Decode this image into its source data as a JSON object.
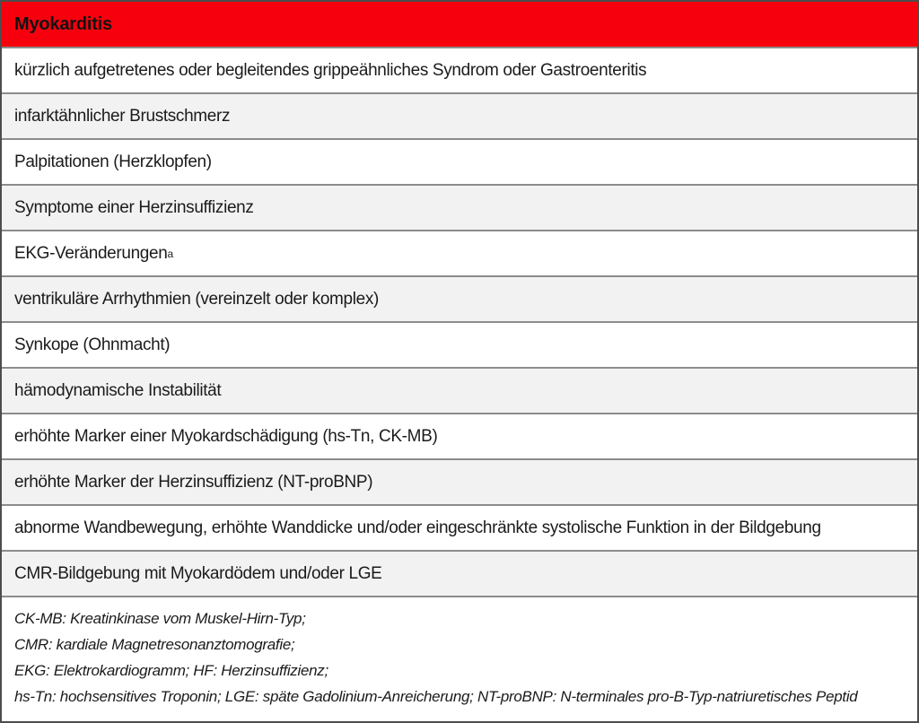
{
  "colors": {
    "header_bg": "#f7000d",
    "header_text": "#121212",
    "row_bg": "#ffffff",
    "row_alt_bg": "#f2f2f2",
    "grid_line": "#8c8c8c",
    "outer_border": "#4d4d4d",
    "body_text": "#1b1b1b"
  },
  "table": {
    "header_title": "Myokarditis",
    "rows": [
      {
        "text": "kürzlich aufgetretenes oder begleitendes grippeähnliches Syndrom oder Gastroenteritis"
      },
      {
        "text": "infarktähnlicher Brustschmerz"
      },
      {
        "text": "Palpitationen (Herzklopfen)"
      },
      {
        "text": "Symptome einer Herzinsuffizienz"
      },
      {
        "text": "EKG-Veränderungen",
        "sup": "a"
      },
      {
        "text": "ventrikuläre Arrhythmien (vereinzelt oder komplex)"
      },
      {
        "text": "Synkope (Ohnmacht)"
      },
      {
        "text": "hämodynamische Instabilität"
      },
      {
        "text": "erhöhte Marker einer Myokardschädigung (hs-Tn, CK-MB)"
      },
      {
        "text": "erhöhte Marker der Herzinsuffizienz (NT-proBNP)"
      },
      {
        "text": "abnorme Wandbewegung, erhöhte Wanddicke und/oder eingeschränkte systolische Funktion in der Bildgebung"
      },
      {
        "text": "CMR-Bildgebung mit Myokardödem und/oder LGE"
      }
    ],
    "footnotes": [
      "CK-MB: Kreatinkinase vom Muskel-Hirn-Typ;",
      "CMR: kardiale Magnetresonanztomografie;",
      "EKG: Elektrokardiogramm; HF: Herzinsuffizienz;",
      "hs-Tn: hochsensitives Troponin; LGE: späte Gadolinium-Anreicherung; NT-proBNP: N-terminales pro-B-Typ-natriuretisches Peptid"
    ]
  }
}
